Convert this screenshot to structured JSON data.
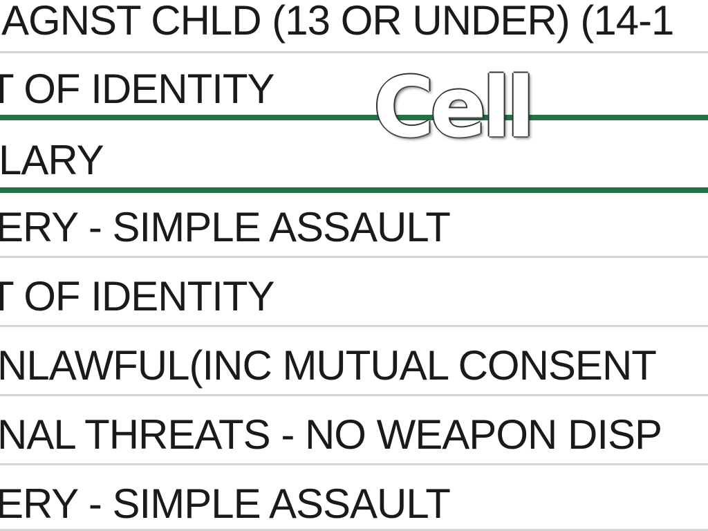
{
  "rows": [
    "AGNST CHLD (13 OR UNDER) (14-1",
    "T OF IDENTITY",
    "LARY",
    "ERY - SIMPLE ASSAULT",
    "T OF IDENTITY",
    "NLAWFUL(INC MUTUAL CONSENT",
    "NAL THREATS - NO WEAPON DISP",
    "ERY - SIMPLE ASSAULT"
  ],
  "selected_row_index": 2,
  "selection_color": "#217346",
  "overlay_title": "Cell"
}
